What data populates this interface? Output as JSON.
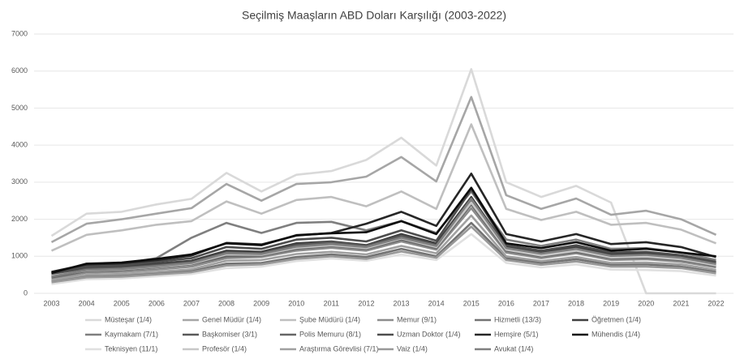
{
  "chart_data": {
    "type": "line",
    "title": "Seçilmiş Maaşların ABD Doları Karşılığı (2003-2022)",
    "categories": [
      "2003",
      "2004",
      "2005",
      "2006",
      "2007",
      "2008",
      "2009",
      "2010",
      "2011",
      "2012",
      "2013",
      "2014",
      "2015",
      "2016",
      "2017",
      "2018",
      "2019",
      "2020",
      "2021",
      "2022"
    ],
    "ylim": [
      0,
      7000
    ],
    "yticks": [
      0,
      1000,
      2000,
      3000,
      4000,
      5000,
      6000,
      7000
    ],
    "grid": true,
    "legend": "bottom",
    "series": [
      {
        "name": "Müsteşar (1/4)",
        "color": "#d9d9d9",
        "values": [
          1550,
          2150,
          2200,
          2400,
          2550,
          3250,
          2750,
          3200,
          3300,
          3600,
          4200,
          3450,
          6050,
          3000,
          2600,
          2900,
          2450,
          0,
          0,
          0
        ]
      },
      {
        "name": "Genel Müdür (1/4)",
        "color": "#a6a6a6",
        "values": [
          1380,
          1880,
          2000,
          2150,
          2300,
          2950,
          2500,
          2950,
          3000,
          3150,
          3680,
          3020,
          5300,
          2650,
          2280,
          2560,
          2120,
          2230,
          2000,
          1580
        ]
      },
      {
        "name": "Şube Müdürü (1/4)",
        "color": "#bfbfbf",
        "values": [
          1150,
          1580,
          1700,
          1850,
          1950,
          2480,
          2150,
          2520,
          2600,
          2350,
          2750,
          2280,
          4560,
          2280,
          1980,
          2200,
          1850,
          1900,
          1720,
          1350
        ]
      },
      {
        "name": "Memur (9/1)",
        "color": "#8c8c8c",
        "values": [
          400,
          560,
          580,
          640,
          720,
          950,
          980,
          1150,
          1230,
          1150,
          1400,
          1180,
          2300,
          1100,
          950,
          1080,
          900,
          920,
          850,
          700
        ]
      },
      {
        "name": "Hizmetli (13/3)",
        "color": "#737373",
        "values": [
          330,
          470,
          480,
          540,
          600,
          800,
          820,
          980,
          1050,
          980,
          1200,
          1000,
          1900,
          950,
          820,
          920,
          770,
          780,
          720,
          580
        ]
      },
      {
        "name": "Öğretmen (1/4)",
        "color": "#404040",
        "values": [
          520,
          700,
          730,
          800,
          880,
          1150,
          1120,
          1350,
          1400,
          1300,
          1600,
          1350,
          2600,
          1250,
          1100,
          1250,
          1050,
          1080,
          990,
          820
        ]
      },
      {
        "name": "Kaymakam (7/1)",
        "color": "#7f7f7f",
        "values": [
          560,
          750,
          800,
          950,
          1500,
          1900,
          1630,
          1900,
          1930,
          1700,
          1950,
          1630,
          2750,
          1450,
          1280,
          1450,
          1200,
          1220,
          1100,
          900
        ]
      },
      {
        "name": "Başkomiser (3/1)",
        "color": "#595959",
        "values": [
          480,
          660,
          690,
          760,
          840,
          1100,
          1080,
          1300,
          1380,
          1280,
          1550,
          1300,
          2500,
          1200,
          1050,
          1200,
          1000,
          1020,
          950,
          780
        ]
      },
      {
        "name": "Polis Memuru (8/1)",
        "color": "#666666",
        "values": [
          430,
          600,
          630,
          700,
          780,
          1000,
          1020,
          1200,
          1280,
          1200,
          1450,
          1220,
          2400,
          1150,
          1000,
          1120,
          950,
          960,
          900,
          740
        ]
      },
      {
        "name": "Uzman Doktor (1/4)",
        "color": "#4d4d4d",
        "values": [
          540,
          730,
          760,
          850,
          950,
          1250,
          1200,
          1450,
          1500,
          1400,
          1700,
          1420,
          2800,
          1300,
          1150,
          1300,
          1100,
          1120,
          1030,
          850
        ]
      },
      {
        "name": "Hemşire (5/1)",
        "color": "#262626",
        "values": [
          580,
          780,
          810,
          900,
          1020,
          1360,
          1320,
          1560,
          1630,
          1880,
          2200,
          1820,
          3230,
          1600,
          1400,
          1600,
          1330,
          1380,
          1250,
          980
        ]
      },
      {
        "name": "Mühendis (1/4)",
        "color": "#0d0d0d",
        "values": [
          550,
          800,
          830,
          930,
          1050,
          1350,
          1300,
          1570,
          1620,
          1650,
          1950,
          1600,
          2850,
          1350,
          1220,
          1380,
          1150,
          1200,
          1100,
          1000
        ]
      },
      {
        "name": "Teknisyen (11/1)",
        "color": "#e0e0e0",
        "values": [
          250,
          380,
          400,
          460,
          520,
          680,
          720,
          870,
          940,
          880,
          1050,
          900,
          1600,
          820,
          700,
          780,
          640,
          630,
          600,
          480
        ]
      },
      {
        "name": "Profesör (1/4)",
        "color": "#c8c8c8",
        "values": [
          470,
          620,
          650,
          720,
          800,
          1050,
          1040,
          1230,
          1300,
          1220,
          1480,
          1250,
          2450,
          1180,
          1020,
          1150,
          970,
          990,
          920,
          760
        ]
      },
      {
        "name": "Araştırma Görevlisi (7/1)",
        "color": "#a0a0a0",
        "values": [
          360,
          500,
          520,
          580,
          650,
          880,
          900,
          1060,
          1120,
          1050,
          1280,
          1080,
          2100,
          1000,
          870,
          980,
          820,
          830,
          780,
          630
        ]
      },
      {
        "name": "Vaiz (1/4)",
        "color": "#999999",
        "values": [
          300,
          430,
          450,
          510,
          570,
          750,
          780,
          930,
          1000,
          930,
          1130,
          960,
          1800,
          900,
          770,
          860,
          720,
          720,
          680,
          540
        ]
      },
      {
        "name": "Avukat (1/4)",
        "color": "#808080",
        "values": [
          450,
          630,
          660,
          730,
          820,
          1080,
          1060,
          1260,
          1330,
          1250,
          1500,
          1280,
          2550,
          1220,
          1070,
          1200,
          1010,
          1040,
          960,
          790
        ]
      }
    ]
  }
}
